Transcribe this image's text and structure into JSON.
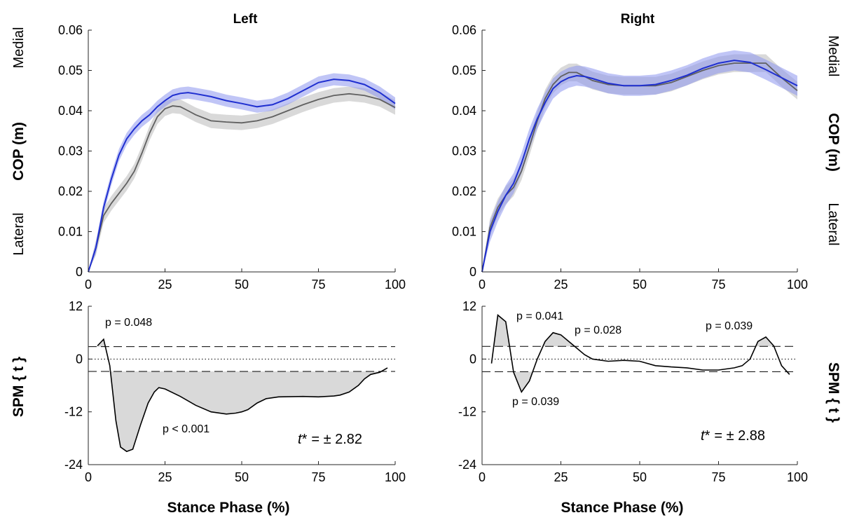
{
  "figure": {
    "xlabel": "Stance Phase (%)",
    "colors": {
      "series_a_line": "#1f2fd0",
      "series_a_band": "#8c96ef",
      "series_b_line": "#606060",
      "series_b_band": "#cfcfcf",
      "spm_line": "#000000",
      "spm_fill": "#d9d9d9"
    }
  },
  "chart_data": [
    {
      "id": "left-cop",
      "type": "line",
      "title": "Left",
      "ylabel": "COP (m)",
      "side_labels": [
        "Medial",
        "Lateral"
      ],
      "xlim": [
        0,
        100
      ],
      "ylim": [
        0,
        0.06
      ],
      "xticks": [
        "0",
        "25",
        "50",
        "75",
        "100"
      ],
      "yticks": [
        "0",
        "0.01",
        "0.02",
        "0.03",
        "0.04",
        "0.05",
        "0.06"
      ],
      "x": [
        0,
        2.5,
        5,
        7.5,
        10,
        12.5,
        15,
        17.5,
        20,
        22.5,
        25,
        27.5,
        30,
        32.5,
        35,
        40,
        45,
        50,
        55,
        60,
        65,
        70,
        75,
        80,
        85,
        90,
        95,
        100
      ],
      "series": [
        {
          "values": [
            0,
            0.006,
            0.016,
            0.023,
            0.029,
            0.033,
            0.0355,
            0.0375,
            0.039,
            0.041,
            0.0425,
            0.0438,
            0.0443,
            0.0445,
            0.0442,
            0.0435,
            0.0425,
            0.0418,
            0.041,
            0.0415,
            0.043,
            0.045,
            0.047,
            0.0478,
            0.0475,
            0.0465,
            0.0445,
            0.0418
          ],
          "band": 0.0015
        },
        {
          "values": [
            0,
            0.006,
            0.014,
            0.017,
            0.0195,
            0.022,
            0.025,
            0.0295,
            0.0345,
            0.0385,
            0.0405,
            0.0412,
            0.041,
            0.04,
            0.039,
            0.0375,
            0.0372,
            0.037,
            0.0375,
            0.0385,
            0.04,
            0.0415,
            0.0428,
            0.0438,
            0.0442,
            0.0438,
            0.0428,
            0.0408
          ],
          "band": 0.0018
        }
      ]
    },
    {
      "id": "right-cop",
      "type": "line",
      "title": "Right",
      "ylabel": "COP (m)",
      "side_labels": [
        "Medial",
        "Lateral"
      ],
      "xlim": [
        0,
        100
      ],
      "ylim": [
        0,
        0.06
      ],
      "xticks": [
        "0",
        "25",
        "50",
        "75",
        "100"
      ],
      "yticks": [
        "0",
        "0.01",
        "0.02",
        "0.03",
        "0.04",
        "0.05",
        "0.06"
      ],
      "x": [
        0,
        2.5,
        5,
        7.5,
        10,
        12.5,
        15,
        17.5,
        20,
        22.5,
        25,
        27.5,
        30,
        32.5,
        35,
        40,
        45,
        50,
        55,
        60,
        65,
        70,
        75,
        80,
        85,
        90,
        95,
        100
      ],
      "series": [
        {
          "values": [
            0,
            0.01,
            0.015,
            0.019,
            0.022,
            0.027,
            0.033,
            0.038,
            0.042,
            0.0455,
            0.0472,
            0.0482,
            0.0487,
            0.0485,
            0.048,
            0.0468,
            0.0462,
            0.0462,
            0.0465,
            0.0475,
            0.0488,
            0.0505,
            0.0518,
            0.0525,
            0.052,
            0.0502,
            0.0482,
            0.0462
          ],
          "band": 0.0025
        },
        {
          "values": [
            0,
            0.011,
            0.016,
            0.019,
            0.021,
            0.025,
            0.031,
            0.0375,
            0.043,
            0.0465,
            0.0485,
            0.0495,
            0.0495,
            0.0485,
            0.0475,
            0.0465,
            0.0462,
            0.0462,
            0.0462,
            0.047,
            0.0485,
            0.05,
            0.0512,
            0.0518,
            0.0518,
            0.0518,
            0.0482,
            0.045
          ],
          "band": 0.0022
        }
      ]
    },
    {
      "id": "left-spm",
      "type": "line",
      "ylabel": "SPM { t }",
      "xlim": [
        0,
        100
      ],
      "ylim": [
        -24,
        12
      ],
      "xticks": [
        "0",
        "25",
        "50",
        "75",
        "100"
      ],
      "yticks": [
        "-24",
        "-12",
        "0",
        "12"
      ],
      "threshold": 2.82,
      "threshold_label": "= ± 2.82",
      "x": [
        3,
        5,
        7,
        9,
        10.5,
        12.5,
        14.5,
        17,
        19.5,
        21.5,
        23,
        25,
        30,
        35,
        40,
        45,
        48,
        50,
        52,
        55,
        58,
        62,
        70,
        75,
        80,
        82,
        85,
        88,
        90,
        92,
        95,
        97.5
      ],
      "values": [
        3,
        4.5,
        -1.5,
        -14,
        -20,
        -21,
        -20.5,
        -15,
        -10,
        -7.5,
        -6.5,
        -6.8,
        -8.5,
        -10.5,
        -12,
        -12.5,
        -12.3,
        -12,
        -11.5,
        -10,
        -9,
        -8.6,
        -8.5,
        -8.6,
        -8.4,
        -8.2,
        -7.5,
        -6,
        -4.5,
        -3.5,
        -3,
        -2
      ],
      "annotations": [
        "p = 0.048",
        "p < 0.001"
      ]
    },
    {
      "id": "right-spm",
      "type": "line",
      "ylabel": "SPM { t }",
      "xlim": [
        0,
        100
      ],
      "ylim": [
        -24,
        12
      ],
      "xticks": [
        "0",
        "25",
        "50",
        "75",
        "100"
      ],
      "yticks": [
        "-24",
        "-12",
        "0",
        "12"
      ],
      "threshold": 2.88,
      "threshold_label": "= ± 2.88",
      "x": [
        3,
        5,
        7.5,
        10,
        12.5,
        15,
        17.5,
        20,
        22.5,
        25,
        27.5,
        30,
        32.5,
        35,
        40,
        45,
        50,
        55,
        60,
        65,
        70,
        75,
        80,
        82.5,
        85,
        87.5,
        90,
        92.5,
        95,
        97.5
      ],
      "values": [
        -1,
        10,
        8.5,
        -3,
        -7.5,
        -5,
        0,
        4,
        6,
        5.5,
        4,
        2.5,
        1,
        0,
        -0.5,
        -0.3,
        -0.5,
        -1.5,
        -1.8,
        -2,
        -2.5,
        -2.5,
        -2,
        -1.5,
        0,
        4,
        5,
        3,
        -1.5,
        -3.5
      ],
      "annotations": [
        "p = 0.041",
        "p = 0.028",
        "p = 0.039",
        "p = 0.039"
      ]
    }
  ]
}
